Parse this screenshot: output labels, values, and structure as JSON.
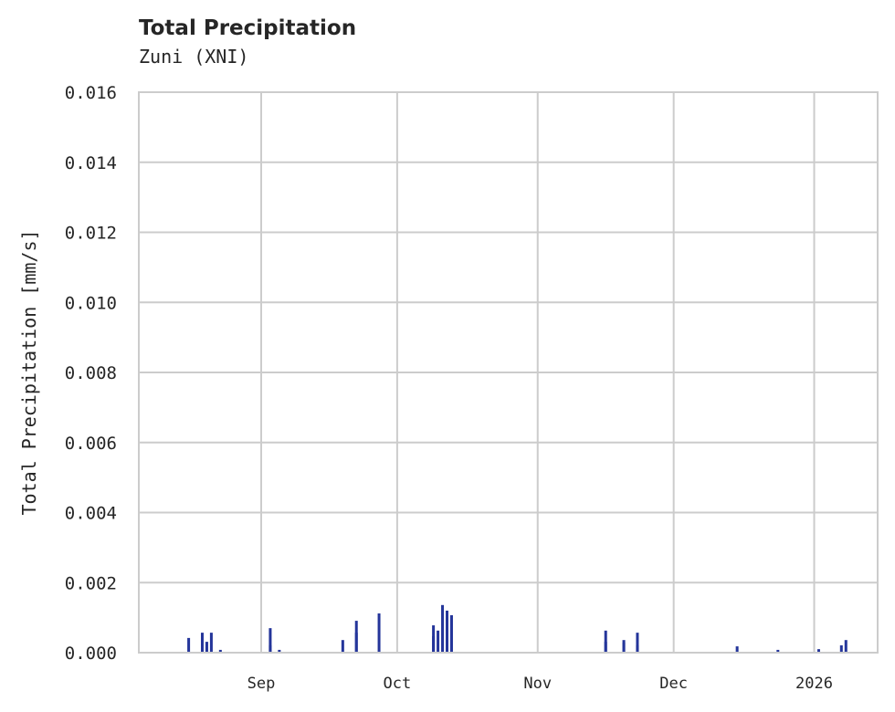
{
  "header": {
    "title": "Total Precipitation",
    "subtitle": "Zuni (XNI)"
  },
  "colors": {
    "bar": "#24359a",
    "grid": "#cccccc",
    "text": "#262626",
    "background": "#ffffff"
  },
  "chart_data": {
    "type": "bar",
    "title": "Total Precipitation",
    "subtitle": "Zuni (XNI)",
    "xlabel": "",
    "ylabel": "Total Precipitation [mm/s]",
    "ylim": [
      0,
      0.016
    ],
    "xlim": [
      "2025-08-05",
      "2026-01-15"
    ],
    "grid": true,
    "legend": null,
    "yticks": [
      "0.000",
      "0.002",
      "0.004",
      "0.006",
      "0.008",
      "0.010",
      "0.012",
      "0.014",
      "0.016"
    ],
    "xticks": [
      {
        "label": "Sep",
        "date": "2025-09-01"
      },
      {
        "label": "Oct",
        "date": "2025-10-01"
      },
      {
        "label": "Nov",
        "date": "2025-11-01"
      },
      {
        "label": "Dec",
        "date": "2025-12-01"
      },
      {
        "label": "2026",
        "date": "2026-01-01"
      }
    ],
    "x": [
      "2025-08-16",
      "2025-08-19",
      "2025-08-20",
      "2025-08-21",
      "2025-08-23",
      "2025-09-03",
      "2025-09-03",
      "2025-09-05",
      "2025-09-19",
      "2025-09-22",
      "2025-09-22",
      "2025-09-27",
      "2025-10-09",
      "2025-10-09",
      "2025-10-10",
      "2025-10-11",
      "2025-10-12",
      "2025-10-13",
      "2025-11-16",
      "2025-11-16",
      "2025-11-20",
      "2025-11-20",
      "2025-11-23",
      "2025-11-23",
      "2025-12-15",
      "2025-12-24",
      "2026-01-02",
      "2026-01-07",
      "2026-01-08"
    ],
    "values": [
      0.00042,
      0.00057,
      0.00031,
      0.00057,
      8e-05,
      0.00021,
      0.0007,
      8e-05,
      0.00036,
      0.00091,
      0.00057,
      0.00112,
      0.00078,
      0.00047,
      0.00063,
      0.00136,
      0.0012,
      0.00107,
      0.00031,
      0.00063,
      0.00029,
      0.00036,
      0.00057,
      0.00021,
      0.00018,
      8e-05,
      0.0001,
      0.00021,
      0.00036
    ]
  }
}
